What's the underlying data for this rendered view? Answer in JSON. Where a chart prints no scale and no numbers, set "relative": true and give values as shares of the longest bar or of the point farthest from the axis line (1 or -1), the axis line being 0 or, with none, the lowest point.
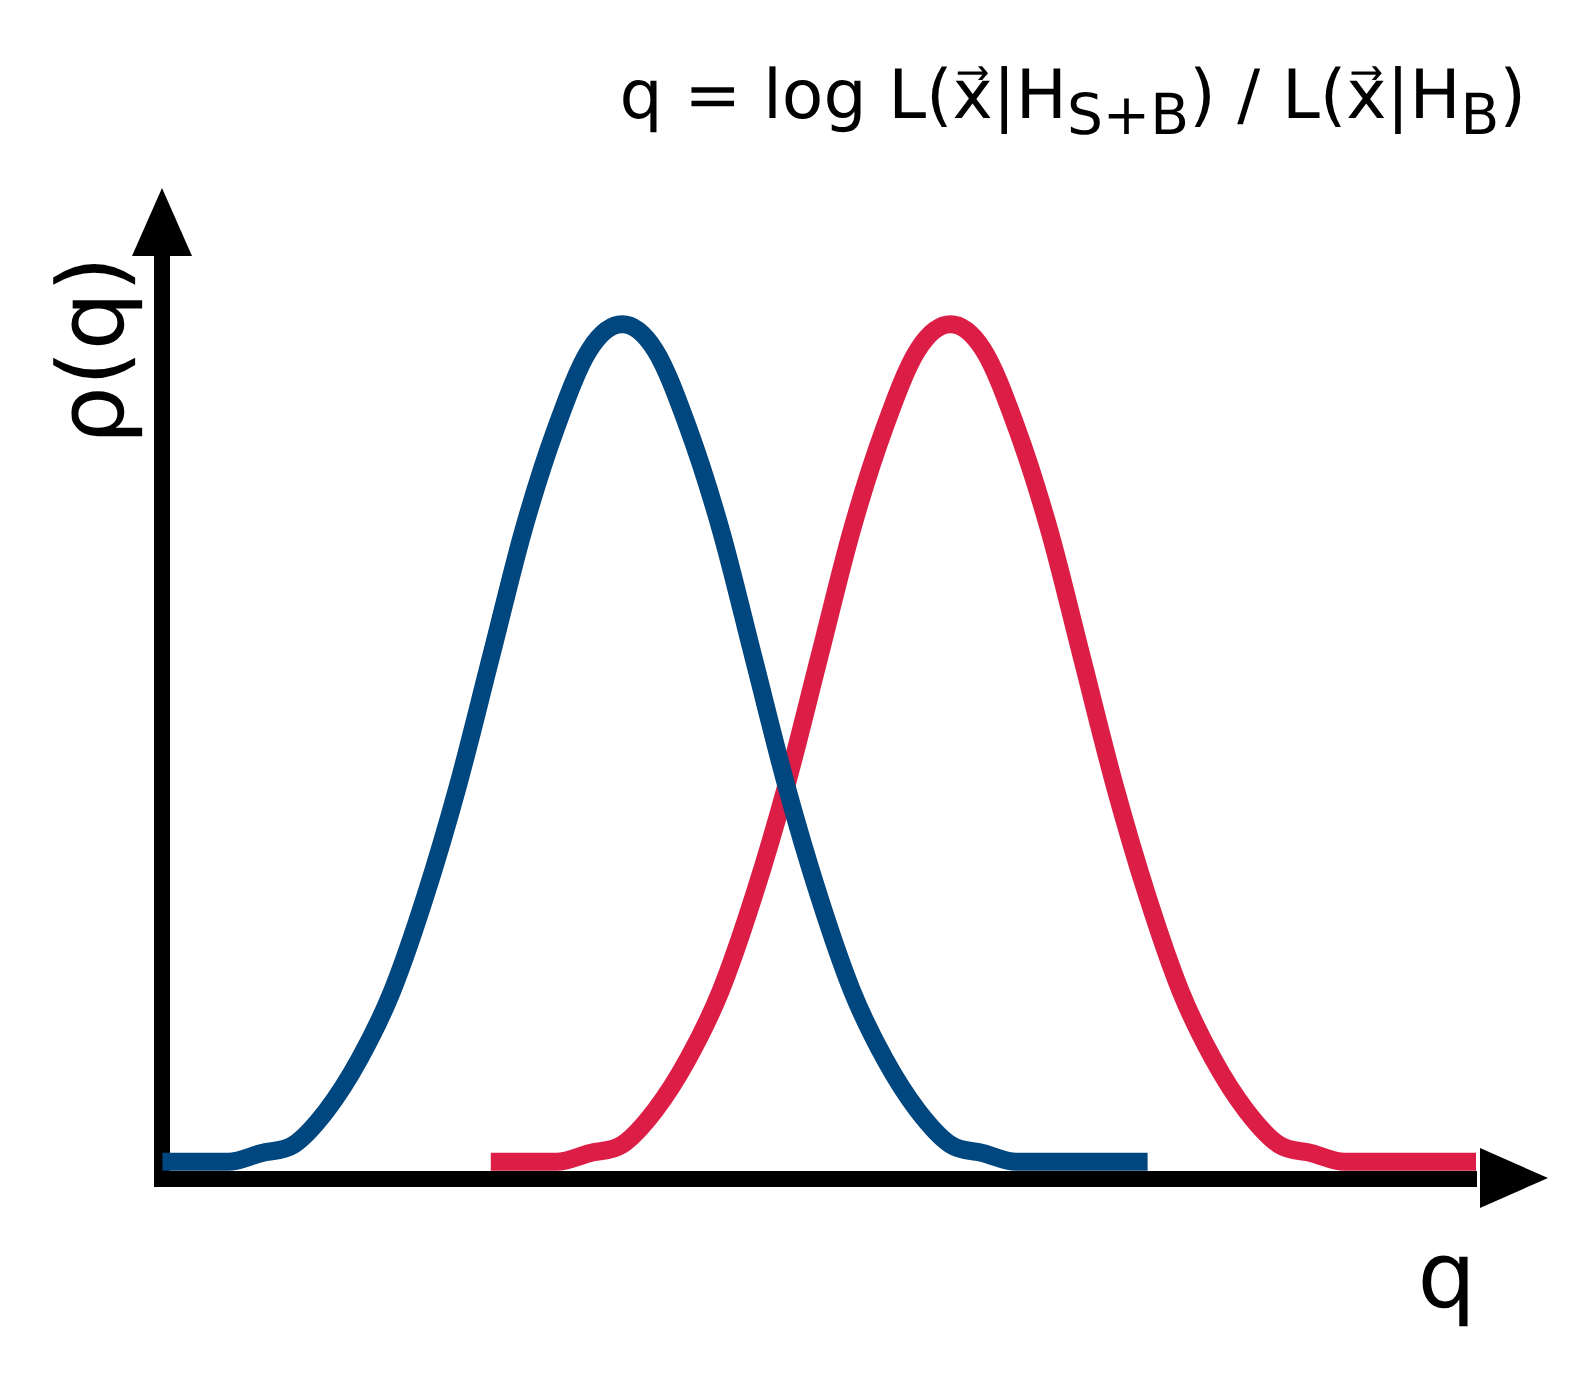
{
  "chart_data": {
    "type": "line",
    "title": "q = log L(x⃗|H$_{S+B}$) / L(x⃗|H$_{B}$)",
    "xlabel": "q",
    "ylabel": "ρ(q)",
    "relative": true,
    "marker": "none",
    "line_style": "solid",
    "categories": [
      null,
      null,
      null,
      null,
      null,
      null,
      null,
      null,
      null,
      null,
      null,
      null,
      null,
      null,
      null,
      null,
      null,
      null,
      null,
      null,
      null,
      null,
      null,
      null,
      null,
      null,
      null,
      null,
      null,
      null,
      null,
      null,
      null,
      null,
      null,
      null,
      null,
      null,
      null,
      null,
      null
    ],
    "series": [
      {
        "color": "#00467f",
        "values": [
          0.02,
          0.02,
          0.02,
          0.03,
          0.04,
          0.08,
          0.14,
          0.22,
          0.33,
          0.46,
          0.61,
          0.76,
          0.88,
          0.97,
          1,
          0.97,
          0.88,
          0.76,
          0.61,
          0.46,
          0.33,
          0.22,
          0.14,
          0.08,
          0.04,
          0.03,
          0.02,
          0.02,
          0.02,
          0.02,
          0.02,
          null,
          null,
          null,
          null,
          null,
          null,
          null,
          null,
          null,
          null
        ]
      },
      {
        "color": "#dc1e46",
        "values": [
          null,
          null,
          null,
          null,
          null,
          null,
          null,
          null,
          null,
          null,
          0.02,
          0.02,
          0.02,
          0.03,
          0.04,
          0.08,
          0.14,
          0.22,
          0.33,
          0.46,
          0.61,
          0.76,
          0.88,
          0.97,
          1,
          0.97,
          0.88,
          0.76,
          0.61,
          0.46,
          0.33,
          0.22,
          0.14,
          0.08,
          0.04,
          0.03,
          0.02,
          0.02,
          0.02,
          0.02,
          0.02
        ]
      }
    ]
  }
}
